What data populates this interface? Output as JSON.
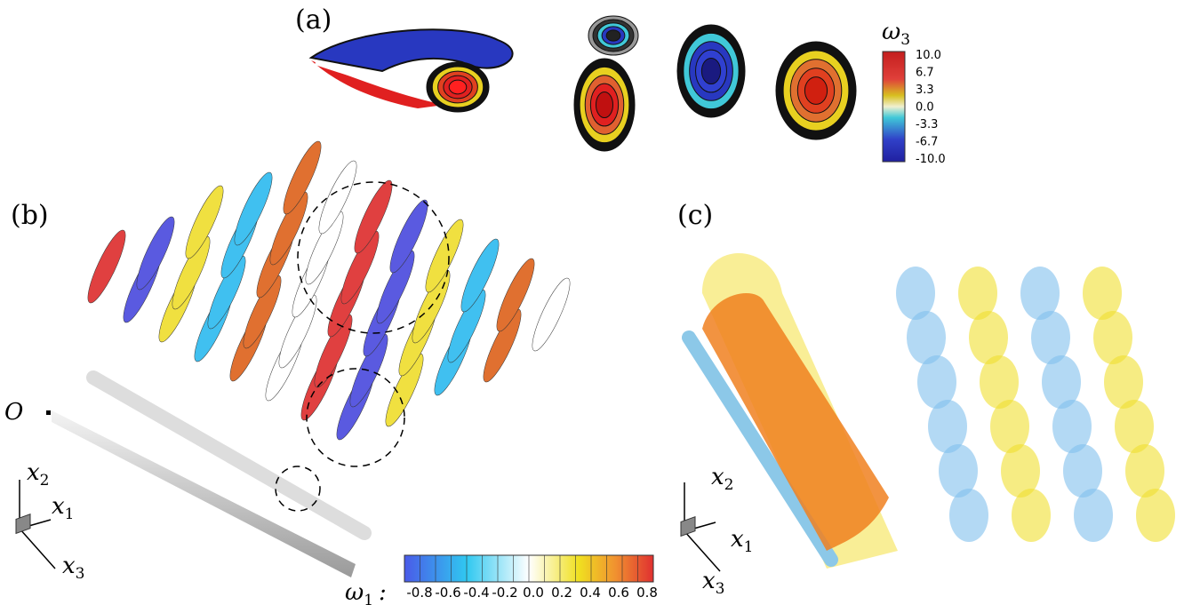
{
  "panels": {
    "a": {
      "label": "(a)",
      "colorbar": {
        "title": "ω",
        "title_subscript": "3",
        "ticks": [
          "10.0",
          "6.7",
          "3.3",
          "0.0",
          "-3.3",
          "-6.7",
          "-10.0"
        ]
      }
    },
    "b": {
      "label": "(b)",
      "origin": "O",
      "axes": [
        {
          "symbol": "x",
          "subscript": "2"
        },
        {
          "symbol": "x",
          "subscript": "1"
        },
        {
          "symbol": "x",
          "subscript": "3"
        }
      ],
      "colorbar": {
        "title": "ω",
        "title_subscript": "1",
        "separator": ":",
        "ticks": [
          "-0.8",
          "-0.6",
          "-0.4",
          "-0.2",
          "0.0",
          "0.2",
          "0.4",
          "0.6",
          "0.8"
        ]
      }
    },
    "c": {
      "label": "(c)",
      "axes": [
        {
          "symbol": "x",
          "subscript": "2"
        },
        {
          "symbol": "x",
          "subscript": "1"
        },
        {
          "symbol": "x",
          "subscript": "3"
        }
      ]
    }
  }
}
